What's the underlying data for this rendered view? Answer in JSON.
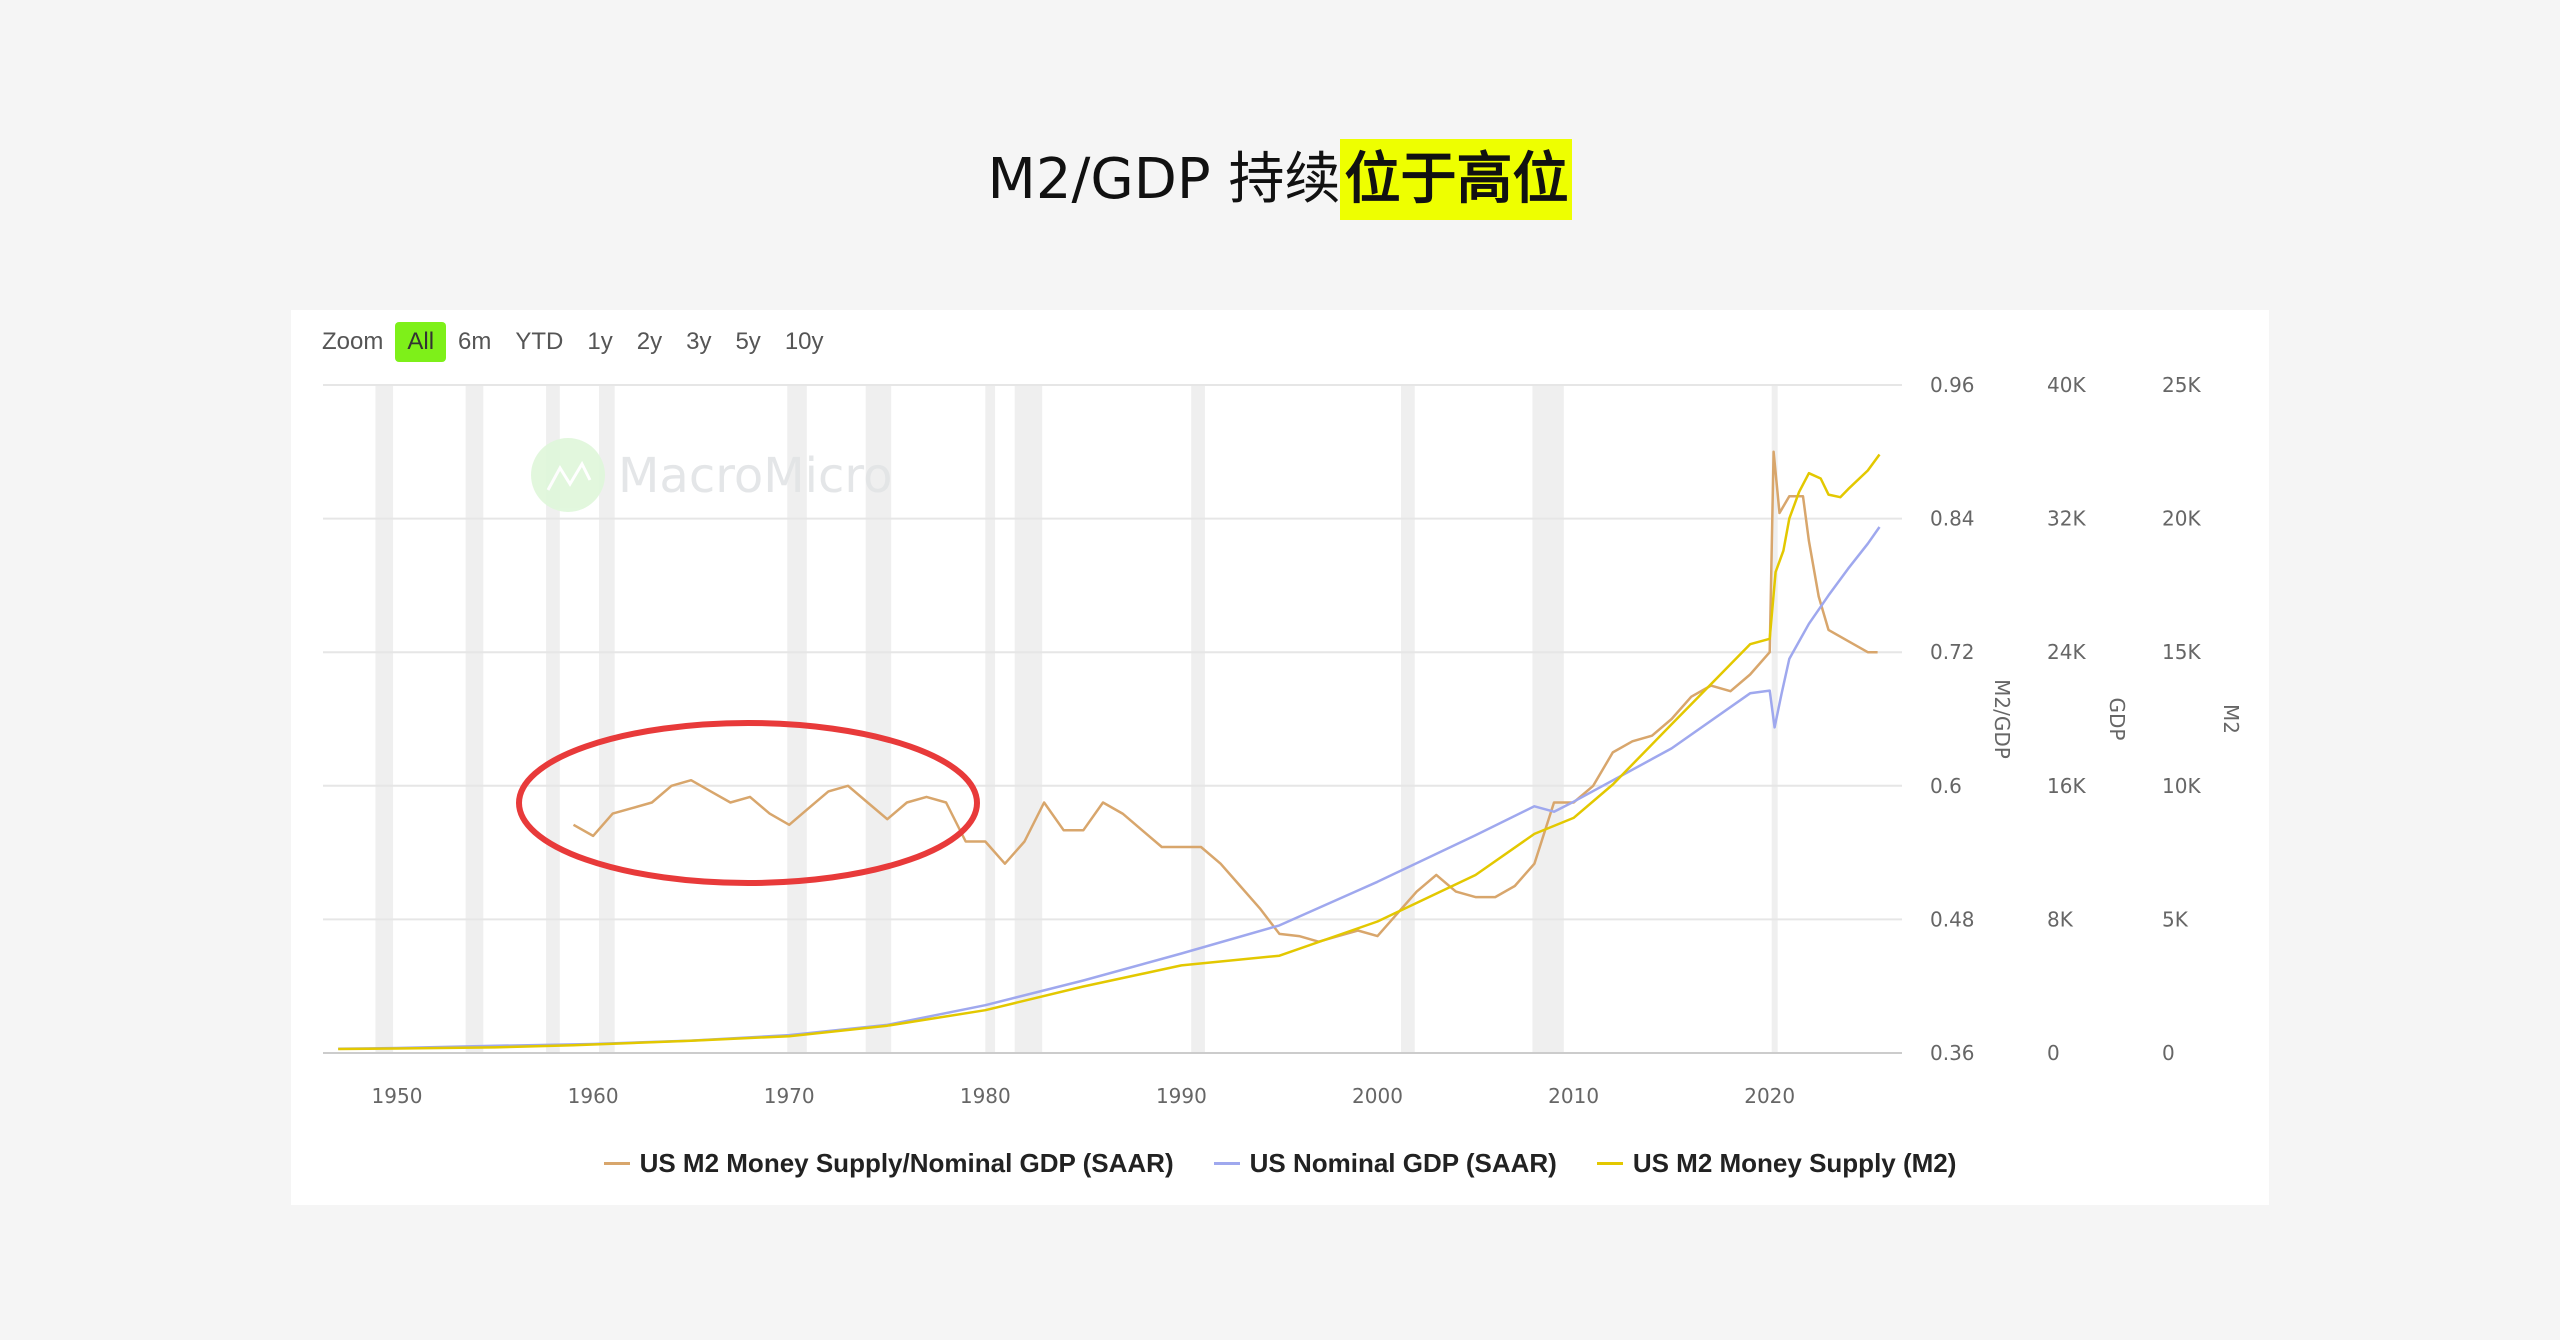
{
  "title": {
    "plain": "M2/GDP 持续",
    "highlight": "位于高位"
  },
  "zoom": {
    "label": "Zoom",
    "buttons": [
      "All",
      "6m",
      "YTD",
      "1y",
      "2y",
      "3y",
      "5y",
      "10y"
    ],
    "active": "All"
  },
  "watermark": "MacroMicro",
  "colors": {
    "m2gdp": "#d8a66c",
    "gdp": "#9fa8ee",
    "m2": "#e3c800",
    "highlight": "#eeff00",
    "active_button": "#7ef019",
    "annotation": "#e83a3a"
  },
  "chart_data": {
    "type": "line",
    "xlim": [
      1946,
      2027
    ],
    "x_ticks": [
      "1950",
      "1960",
      "1970",
      "1980",
      "1990",
      "2000",
      "2010",
      "2020"
    ],
    "axes": [
      {
        "id": "m2gdp",
        "title": "M2/GDP",
        "range": [
          0.36,
          0.96
        ],
        "ticks": [
          "0.96",
          "0.84",
          "0.72",
          "0.6",
          "0.48",
          "0.36"
        ]
      },
      {
        "id": "gdp",
        "title": "GDP",
        "range": [
          0,
          40000
        ],
        "ticks": [
          "40K",
          "32K",
          "24K",
          "16K",
          "8K",
          "0"
        ]
      },
      {
        "id": "m2",
        "title": "M2",
        "range": [
          0,
          25000
        ],
        "ticks": [
          "25K",
          "20K",
          "15K",
          "10K",
          "5K",
          "0"
        ]
      }
    ],
    "grid": true,
    "legend": "bottom",
    "recessions": [
      [
        1948.9,
        1949.8
      ],
      [
        1953.5,
        1954.4
      ],
      [
        1957.6,
        1958.3
      ],
      [
        1960.3,
        1961.1
      ],
      [
        1969.9,
        1970.9
      ],
      [
        1973.9,
        1975.2
      ],
      [
        1980.0,
        1980.5
      ],
      [
        1981.5,
        1982.9
      ],
      [
        1990.5,
        1991.2
      ],
      [
        2001.2,
        2001.9
      ],
      [
        2007.9,
        2009.5
      ],
      [
        2020.1,
        2020.4
      ]
    ],
    "series": [
      {
        "name": "US M2 Money Supply/Nominal GDP (SAAR)",
        "axis": "m2gdp",
        "color": "#d8a66c",
        "x": [
          1959,
          1960,
          1961,
          1962,
          1963,
          1964,
          1965,
          1966,
          1967,
          1968,
          1969,
          1970,
          1971,
          1972,
          1973,
          1974,
          1975,
          1976,
          1977,
          1978,
          1979,
          1980,
          1981,
          1982,
          1983,
          1984,
          1985,
          1986,
          1987,
          1988,
          1989,
          1990,
          1991,
          1992,
          1993,
          1994,
          1995,
          1996,
          1997,
          1998,
          1999,
          2000,
          2001,
          2002,
          2003,
          2004,
          2005,
          2006,
          2007,
          2008,
          2009,
          2010,
          2011,
          2012,
          2013,
          2014,
          2015,
          2016,
          2017,
          2018,
          2019,
          2020.0,
          2020.2,
          2020.5,
          2021,
          2021.7,
          2022,
          2022.5,
          2023,
          2024,
          2025,
          2025.5
        ],
        "y": [
          0.565,
          0.555,
          0.575,
          0.58,
          0.585,
          0.6,
          0.605,
          0.595,
          0.585,
          0.59,
          0.575,
          0.565,
          0.58,
          0.595,
          0.6,
          0.585,
          0.57,
          0.585,
          0.59,
          0.585,
          0.55,
          0.55,
          0.53,
          0.55,
          0.585,
          0.56,
          0.56,
          0.585,
          0.575,
          0.56,
          0.545,
          0.545,
          0.545,
          0.53,
          0.51,
          0.49,
          0.467,
          0.465,
          0.46,
          0.465,
          0.47,
          0.465,
          0.485,
          0.505,
          0.52,
          0.505,
          0.5,
          0.5,
          0.51,
          0.53,
          0.585,
          0.585,
          0.6,
          0.63,
          0.64,
          0.645,
          0.66,
          0.68,
          0.69,
          0.685,
          0.7,
          0.72,
          0.9,
          0.845,
          0.86,
          0.86,
          0.82,
          0.77,
          0.74,
          0.73,
          0.72,
          0.72
        ]
      },
      {
        "name": "US Nominal GDP (SAAR)",
        "axis": "gdp",
        "color": "#9fa8ee",
        "x": [
          1947,
          1950,
          1955,
          1960,
          1965,
          1970,
          1975,
          1980,
          1985,
          1990,
          1995,
          2000,
          2005,
          2008,
          2009,
          2010,
          2015,
          2019,
          2020.0,
          2020.25,
          2020.6,
          2021,
          2022,
          2023,
          2024,
          2025,
          2025.6
        ],
        "y": [
          250,
          300,
          430,
          540,
          740,
          1070,
          1680,
          2860,
          4340,
          5960,
          7640,
          10250,
          13040,
          14770,
          14450,
          15050,
          18240,
          21540,
          21700,
          19500,
          21500,
          23600,
          25700,
          27400,
          29000,
          30500,
          31500
        ]
      },
      {
        "name": "US M2 Money Supply (M2)",
        "axis": "m2",
        "color": "#e3c800",
        "x": [
          1947,
          1950,
          1955,
          1959,
          1965,
          1970,
          1975,
          1980,
          1985,
          1990,
          1995,
          2000,
          2005,
          2008,
          2010,
          2012,
          2015,
          2017,
          2019,
          2020.0,
          2020.3,
          2020.7,
          2021,
          2021.5,
          2022,
          2022.6,
          2023,
          2023.6,
          2024,
          2025,
          2025.6
        ],
        "y": [
          150,
          170,
          210,
          290,
          460,
          630,
          1020,
          1600,
          2490,
          3280,
          3640,
          4920,
          6660,
          8200,
          8800,
          10050,
          12300,
          13800,
          15300,
          15500,
          18000,
          18800,
          20000,
          21000,
          21700,
          21500,
          20900,
          20800,
          21100,
          21800,
          22400
        ]
      }
    ]
  }
}
